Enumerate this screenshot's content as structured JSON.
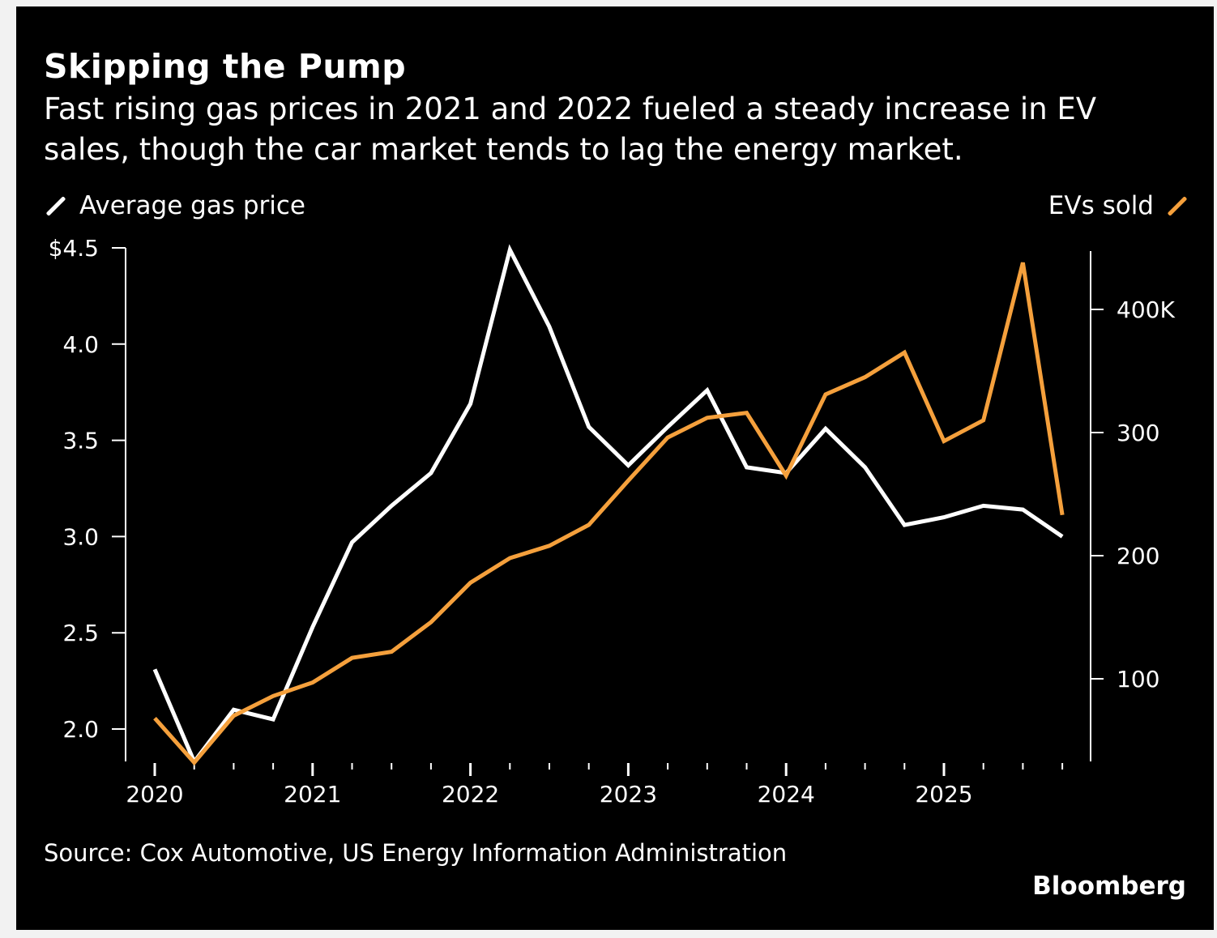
{
  "colors": {
    "background": "#000000",
    "gas": "#ffffff",
    "ev": "#f5a03c",
    "text": "#ffffff"
  },
  "header": {
    "title": "Skipping the Pump",
    "subtitle": "Fast rising gas prices in 2021 and 2022 fueled a steady increase in EV sales, though the car market tends to lag the energy market."
  },
  "footer": {
    "source": "Source: Cox Automotive, US Energy Information Administration",
    "logo": "Bloomberg"
  },
  "chart_data": {
    "type": "line",
    "title": "Skipping the Pump",
    "frequency": "quarterly",
    "x": [
      "2020Q1",
      "2020Q2",
      "2020Q3",
      "2020Q4",
      "2021Q1",
      "2021Q2",
      "2021Q3",
      "2021Q4",
      "2022Q1",
      "2022Q2",
      "2022Q3",
      "2022Q4",
      "2023Q1",
      "2023Q2",
      "2023Q3",
      "2023Q4",
      "2024Q1",
      "2024Q2",
      "2024Q3",
      "2024Q4",
      "2025Q1",
      "2025Q2",
      "2025Q3",
      "2025Q4"
    ],
    "x_tick_labels": [
      "2020",
      "2021",
      "2022",
      "2023",
      "2024",
      "2025"
    ],
    "left_axis": {
      "ticks": [
        2.0,
        2.5,
        3.0,
        3.5,
        4.0,
        4.5
      ],
      "tick_labels": [
        "2.0",
        "2.5",
        "3.0",
        "3.5",
        "4.0",
        "$4.5"
      ],
      "range": [
        1.83,
        4.5
      ]
    },
    "right_axis": {
      "ticks": [
        100,
        200,
        300,
        400
      ],
      "tick_labels": [
        "100",
        "200",
        "300",
        "400K"
      ],
      "range": [
        30,
        450
      ]
    },
    "legend_placement": "top",
    "grid": false,
    "series": [
      {
        "name": "Average gas price",
        "axis": "left",
        "color": "#ffffff",
        "values": [
          2.31,
          1.83,
          2.1,
          2.05,
          2.53,
          2.97,
          3.16,
          3.33,
          3.69,
          4.49,
          4.09,
          3.57,
          3.37,
          3.57,
          3.76,
          3.36,
          3.33,
          3.56,
          3.36,
          3.06,
          3.1,
          3.16,
          3.14,
          3.0
        ]
      },
      {
        "name": "EVs sold",
        "axis": "right",
        "color": "#f5a03c",
        "values": [
          68,
          32,
          70,
          86,
          97,
          117,
          122,
          146,
          178,
          198,
          208,
          225,
          261,
          296,
          312,
          316,
          265,
          331,
          345,
          365,
          293,
          310,
          438,
          233
        ]
      }
    ]
  }
}
